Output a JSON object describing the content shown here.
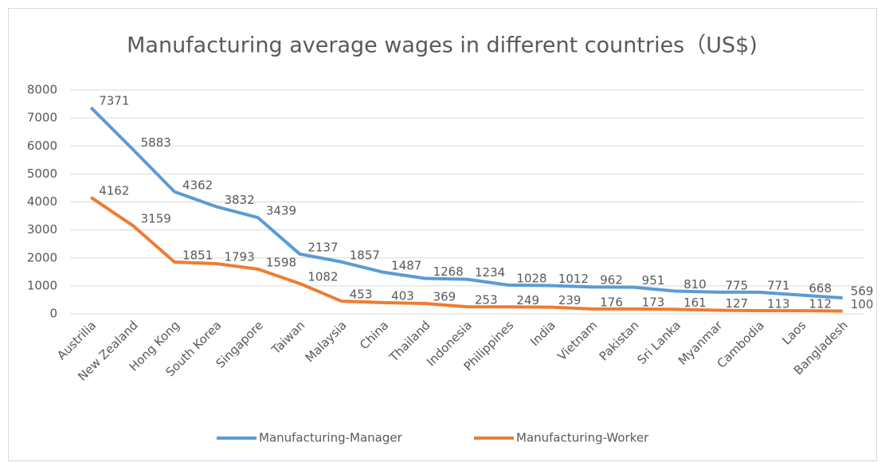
{
  "chart_data": {
    "type": "line",
    "title": "Manufacturing average wages in different countries（US$)",
    "categories": [
      "Austrilia",
      "New Zealand",
      "Hong Kong",
      "South Korea",
      "Singapore",
      "Taiwan",
      "Malaysia",
      "China",
      "Thailand",
      "Indonesia",
      "Philippines",
      "India",
      "Vietnam",
      "Pakistan",
      "Sri Lanka",
      "Myanmar",
      "Cambodia",
      "Laos",
      "Bangladesh"
    ],
    "series": [
      {
        "name": "Manufacturing-Manager",
        "color": "#5b9bd5",
        "values": [
          7371,
          5883,
          4362,
          3832,
          3439,
          2137,
          1857,
          1487,
          1268,
          1234,
          1028,
          1012,
          962,
          951,
          810,
          775,
          771,
          668,
          569
        ]
      },
      {
        "name": "Manufacturing-Worker",
        "color": "#ed7d31",
        "values": [
          4162,
          3159,
          1851,
          1793,
          1598,
          1082,
          453,
          403,
          369,
          253,
          249,
          239,
          176,
          173,
          161,
          127,
          113,
          112,
          100
        ]
      }
    ],
    "ylim": [
      0,
      8000
    ],
    "yticks": [
      0,
      1000,
      2000,
      3000,
      4000,
      5000,
      6000,
      7000,
      8000
    ],
    "grid": true,
    "legend": "bottom"
  }
}
